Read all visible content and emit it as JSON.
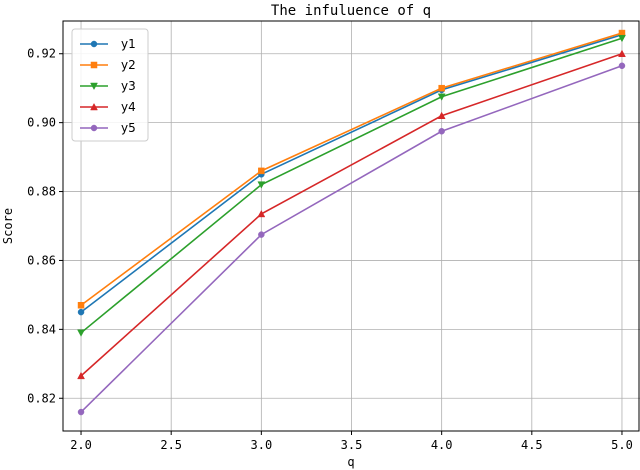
{
  "chart_data": {
    "type": "line",
    "title": "The infuluence of q",
    "xlabel": "q",
    "ylabel": "Score",
    "x": [
      2.0,
      3.0,
      4.0,
      5.0
    ],
    "xticks": [
      "2.0",
      "2.5",
      "3.0",
      "3.5",
      "4.0",
      "4.5",
      "5.0"
    ],
    "yticks": [
      "0.82",
      "0.84",
      "0.86",
      "0.88",
      "0.90",
      "0.92"
    ],
    "xlim": [
      1.9,
      5.1
    ],
    "ylim": [
      0.8105,
      0.9295
    ],
    "grid": true,
    "legend_position": "top-left",
    "series": [
      {
        "name": "y1",
        "values": [
          0.845,
          0.885,
          0.9095,
          0.9255
        ],
        "color": "#1f77b4",
        "marker": "circle"
      },
      {
        "name": "y2",
        "values": [
          0.847,
          0.886,
          0.91,
          0.926
        ],
        "color": "#ff7f0e",
        "marker": "square"
      },
      {
        "name": "y3",
        "values": [
          0.839,
          0.882,
          0.9075,
          0.9245
        ],
        "color": "#2ca02c",
        "marker": "triangle-down"
      },
      {
        "name": "y4",
        "values": [
          0.8265,
          0.8735,
          0.902,
          0.92
        ],
        "color": "#d62728",
        "marker": "triangle-up"
      },
      {
        "name": "y5",
        "values": [
          0.816,
          0.8675,
          0.8975,
          0.9165
        ],
        "color": "#9467bd",
        "marker": "circle"
      }
    ]
  }
}
